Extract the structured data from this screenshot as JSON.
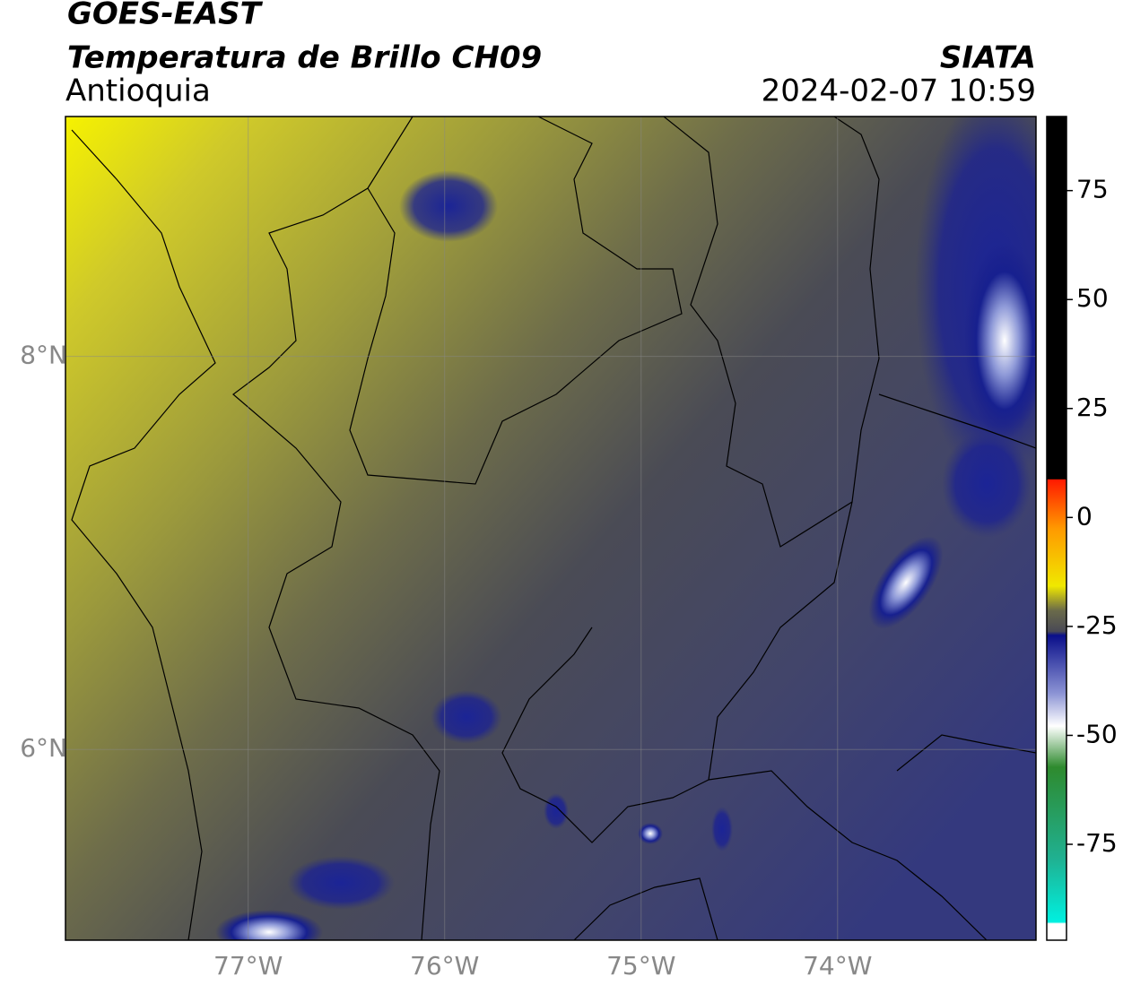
{
  "header": {
    "title": "GOES-EAST",
    "subtitle": "Temperatura de Brillo CH09",
    "region": "Antioquia",
    "source": "SIATA",
    "timestamp": "2024-02-07 10:59"
  },
  "map": {
    "lon_range": [
      -77.93,
      -72.99
    ],
    "lat_range": [
      5.03,
      9.22
    ],
    "lon_ticks": [
      {
        "value": -77,
        "label": "77°W"
      },
      {
        "value": -76,
        "label": "76°W"
      },
      {
        "value": -75,
        "label": "75°W"
      },
      {
        "value": -74,
        "label": "74°W"
      }
    ],
    "lat_ticks": [
      {
        "value": 8,
        "label": "8°N"
      },
      {
        "value": 6,
        "label": "6°N"
      }
    ]
  },
  "colorbar": {
    "range": [
      -97,
      92
    ],
    "ticks": [
      75,
      50,
      25,
      0,
      -25,
      -50,
      -75
    ]
  }
}
